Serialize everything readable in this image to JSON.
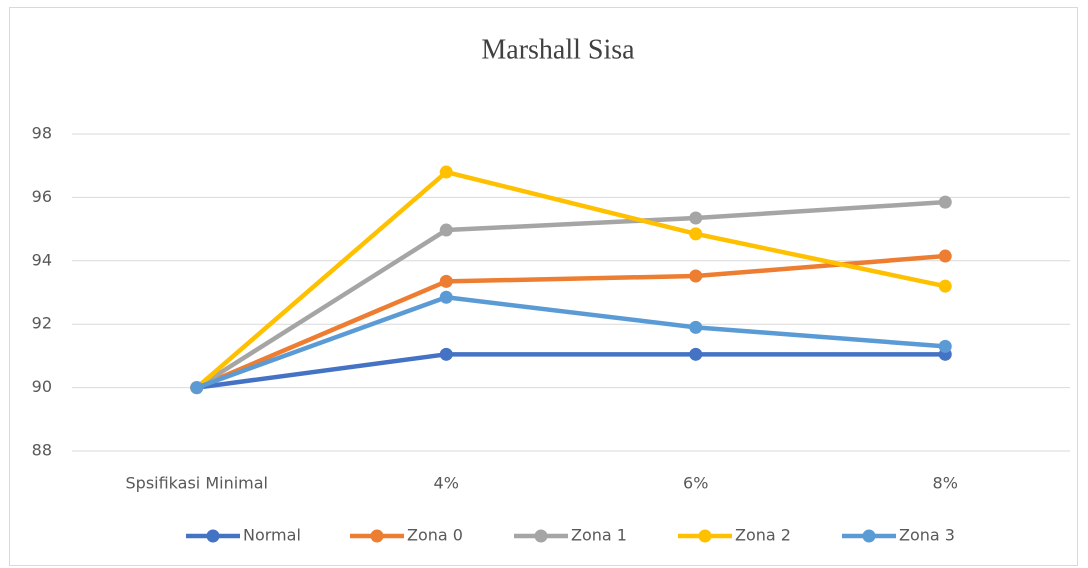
{
  "chart_data": {
    "type": "line",
    "title": "Marshall  Sisa",
    "categories": [
      "Spsifikasi Minimal",
      "4%",
      "6%",
      "8%"
    ],
    "series": [
      {
        "name": "Normal",
        "color": "#4472c4",
        "values": [
          90,
          91.05,
          91.05,
          91.05
        ]
      },
      {
        "name": "Zona 0",
        "color": "#ed7d31",
        "values": [
          90,
          93.35,
          93.52,
          94.15
        ]
      },
      {
        "name": "Zona 1",
        "color": "#a5a5a5",
        "values": [
          90,
          94.97,
          95.35,
          95.85
        ]
      },
      {
        "name": "Zona 2",
        "color": "#ffc000",
        "values": [
          90,
          96.8,
          94.85,
          93.2
        ]
      },
      {
        "name": "Zona 3",
        "color": "#5b9bd5",
        "values": [
          90,
          92.85,
          91.9,
          91.3
        ]
      }
    ],
    "ylim": [
      88,
      98
    ],
    "yticks": [
      88,
      90,
      92,
      94,
      96,
      98
    ],
    "grid": true,
    "legend": "bottom"
  }
}
